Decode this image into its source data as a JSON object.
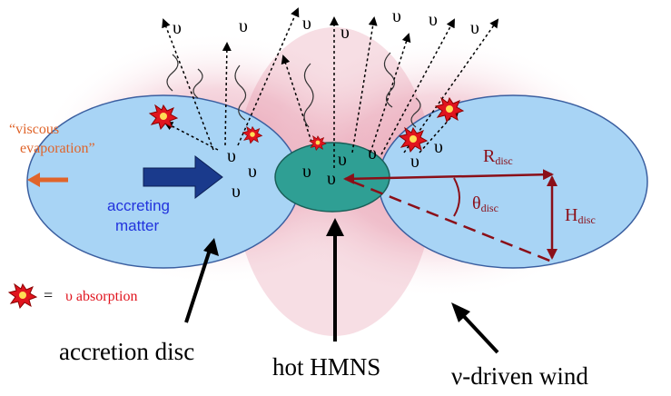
{
  "labels": {
    "viscous_line1": "“viscous",
    "viscous_line2": "evaporation”",
    "accreting_line1": "accreting",
    "accreting_line2": "matter",
    "legend_equals": "=",
    "legend_text": "υ absorption",
    "accretion_disc": "accretion disc",
    "hot_hmns": "hot HMNS",
    "wind": "ν-driven wind",
    "r_main": "R",
    "r_sub": "disc",
    "theta_main": "θ",
    "theta_sub": "disc",
    "h_main": "H",
    "h_sub": "disc"
  },
  "nu_symbol": "υ",
  "colors": {
    "disc_fill": "#a8d4f5",
    "hmns_fill": "#2f9f94",
    "glow": "#d45a7a",
    "dark_red": "#8b0f18",
    "orange": "#e0642a",
    "navy": "#1a3a8c",
    "blue_text": "#2233dd",
    "red_text": "#e0141e"
  }
}
